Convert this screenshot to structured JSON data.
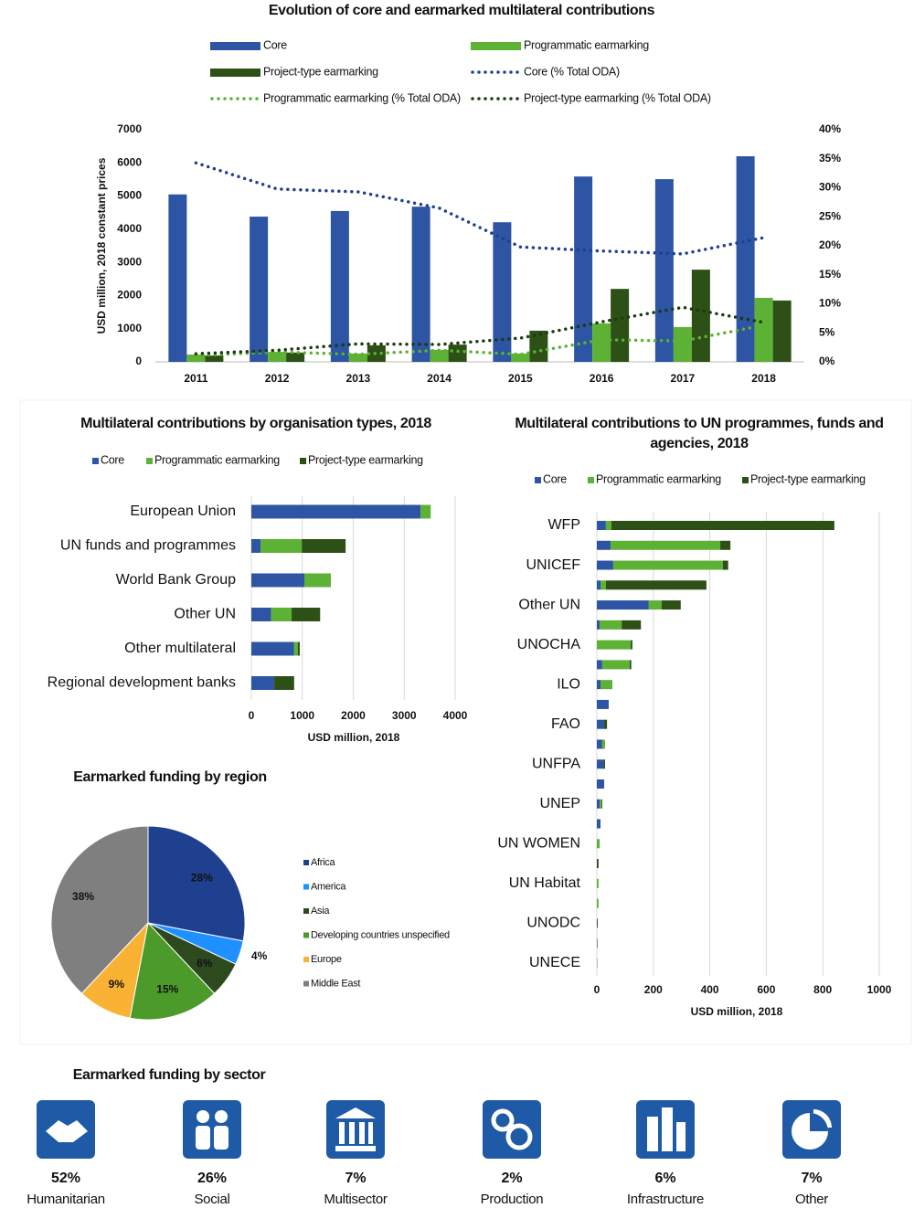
{
  "chart_data": [
    {
      "type": "combo",
      "title": "Evolution of core and earmarked multilateral contributions",
      "y_label": "USD million, 2018 constant prices",
      "categories": [
        "2011",
        "2012",
        "2013",
        "2014",
        "2015",
        "2016",
        "2017",
        "2018"
      ],
      "series": [
        {
          "name": "Core",
          "type": "bar",
          "color": "#2e54a4",
          "values": [
            5050,
            4380,
            4550,
            4680,
            4210,
            5590,
            5510,
            6200
          ]
        },
        {
          "name": "Programmatic earmarking",
          "type": "bar",
          "color": "#5db135",
          "values": [
            220,
            300,
            250,
            360,
            250,
            1160,
            1050,
            1930
          ]
        },
        {
          "name": "Project-type earmarking",
          "type": "bar",
          "color": "#2d5016",
          "values": [
            190,
            280,
            500,
            520,
            940,
            2200,
            2780,
            1850
          ]
        },
        {
          "name": "Core (% Total ODA)",
          "type": "line",
          "axis": "y2",
          "color": "#1f3f8f",
          "values": [
            34.3,
            29.8,
            29.3,
            26.5,
            19.8,
            19.1,
            18.6,
            21.4
          ]
        },
        {
          "name": "Programmatic earmarking (% Total ODA)",
          "type": "line",
          "axis": "y2",
          "color": "#5db135",
          "values": [
            1.1,
            1.7,
            1.3,
            2.0,
            1.3,
            3.8,
            3.6,
            6.3
          ]
        },
        {
          "name": "Project-type earmarking (% Total ODA)",
          "type": "line",
          "axis": "y2",
          "color": "#1a3a10",
          "values": [
            1.4,
            2.0,
            3.1,
            3.0,
            4.1,
            6.9,
            9.4,
            6.8
          ]
        }
      ],
      "ylim": [
        0,
        7000
      ],
      "yticks": [
        0,
        1000,
        2000,
        3000,
        4000,
        5000,
        6000,
        7000
      ],
      "y2lim": [
        0,
        40
      ],
      "y2ticks": [
        {
          "value": 0,
          "label": "0%"
        },
        {
          "value": 5,
          "label": "5%"
        },
        {
          "value": 10,
          "label": "10%"
        },
        {
          "value": 15,
          "label": "15%"
        },
        {
          "value": 20,
          "label": "20%"
        },
        {
          "value": 25,
          "label": "25%"
        },
        {
          "value": 30,
          "label": "30%"
        },
        {
          "value": 35,
          "label": "35%"
        },
        {
          "value": 40,
          "label": "40%"
        }
      ],
      "grid": false
    },
    {
      "type": "barh",
      "title": "Multilateral contributions by organisation types, 2018",
      "x_label": "USD million, 2018",
      "categories": [
        "European Union",
        "UN funds and programmes",
        "World Bank Group",
        "Other UN",
        "Other multilateral",
        "Regional development banks"
      ],
      "series": [
        {
          "name": "Core",
          "color": "#2e54a4",
          "values": [
            3320,
            180,
            1040,
            390,
            840,
            450
          ]
        },
        {
          "name": "Programmatic earmarking",
          "color": "#5db135",
          "values": [
            200,
            810,
            520,
            400,
            70,
            0
          ]
        },
        {
          "name": "Project-type earmarking",
          "color": "#2d5016",
          "values": [
            0,
            860,
            0,
            560,
            40,
            390
          ]
        }
      ],
      "xlim": [
        0,
        4000
      ],
      "xticks": [
        0,
        1000,
        2000,
        3000,
        4000
      ],
      "grid": true
    },
    {
      "type": "barh",
      "title": "Multilateral contributions to UN programmes, funds and agencies, 2018",
      "x_label": "USD million, 2018",
      "categories": [
        "WFP",
        null,
        "UNICEF",
        null,
        "Other UN",
        null,
        "UNOCHA",
        null,
        "ILO",
        null,
        "FAO",
        null,
        "UNFPA",
        null,
        "UNEP",
        null,
        "UN WOMEN",
        null,
        "UN Habitat",
        null,
        "UNODC",
        null,
        "UNECE"
      ],
      "series": [
        {
          "name": "Core",
          "color": "#2e54a4",
          "values": [
            32,
            49,
            58,
            13,
            184,
            10,
            0,
            19,
            13,
            42,
            26,
            19,
            23,
            26,
            10,
            13,
            0,
            0,
            0,
            0,
            0,
            0,
            0
          ]
        },
        {
          "name": "Programmatic earmarking",
          "color": "#5db135",
          "values": [
            19,
            388,
            388,
            19,
            45,
            78,
            120,
            97,
            42,
            0,
            0,
            10,
            0,
            0,
            6,
            0,
            10,
            0,
            6,
            6,
            0,
            0,
            0
          ]
        },
        {
          "name": "Project-type earmarking",
          "color": "#2d5016",
          "values": [
            790,
            36,
            19,
            356,
            68,
            68,
            6,
            6,
            0,
            0,
            10,
            0,
            6,
            0,
            3,
            0,
            0,
            6,
            0,
            0,
            3,
            2,
            1
          ]
        }
      ],
      "xlim": [
        0,
        1000
      ],
      "xticks": [
        0,
        200,
        400,
        600,
        800,
        1000
      ],
      "grid": true
    },
    {
      "type": "pie",
      "title": "Earmarked funding by region",
      "categories": [
        "Africa",
        "America",
        "Asia",
        "Developing countries unspecified",
        "Europe",
        "Middle East"
      ],
      "values": [
        28,
        4,
        6,
        15,
        9,
        38
      ],
      "value_labels": [
        "28%",
        "4%",
        "6%",
        "15%",
        "9%",
        "38%"
      ],
      "colors": [
        "#1f3f8f",
        "#1e90ff",
        "#2d4a1e",
        "#4c9a2a",
        "#f9b233",
        "#7f7f7f"
      ]
    },
    {
      "type": "stat",
      "title": "Earmarked funding by sector",
      "categories": [
        "Humanitarian",
        "Social",
        "Multisector",
        "Production",
        "Infrastructure",
        "Other"
      ],
      "values": [
        52,
        26,
        7,
        2,
        6,
        7
      ],
      "value_labels": [
        "52%",
        "26%",
        "7%",
        "2%",
        "6%",
        "7%"
      ]
    }
  ]
}
